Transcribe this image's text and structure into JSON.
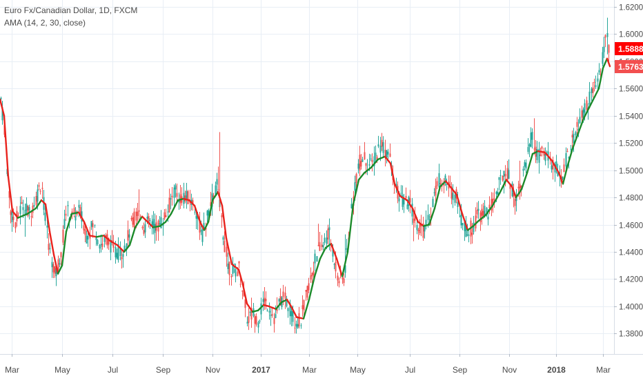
{
  "chart_data": {
    "type": "candlestick",
    "title": "Euro Fx/Canadian Dollar, 1D, FXCM",
    "indicator_label": "AMA (14, 2, 30, close)",
    "ylim": [
      1.365,
      1.625
    ],
    "y_ticks": [
      "1.62000",
      "1.60000",
      "1.58000",
      "1.56000",
      "1.54000",
      "1.52000",
      "1.50000",
      "1.48000",
      "1.46000",
      "1.44000",
      "1.42000",
      "1.40000",
      "1.38000"
    ],
    "x_ticks": [
      "Mar",
      "May",
      "Jul",
      "Sep",
      "Nov",
      "2017",
      "Mar",
      "May",
      "Jul",
      "Sep",
      "Nov",
      "2018",
      "Mar"
    ],
    "x_tick_bold": [
      false,
      false,
      false,
      false,
      false,
      true,
      false,
      false,
      false,
      false,
      false,
      true,
      false
    ],
    "price_label": "1.58880",
    "ama_label": "1.57634",
    "grid": true,
    "colors": {
      "up": "#26a69a",
      "down": "#ef5350",
      "ama_up": "#1b8a2a",
      "ama_down": "#e8221c",
      "grid": "#e8eef5",
      "price_tag": "#ff0000",
      "ama_tag": "#f24f4f",
      "axis_text": "#4a4a4a"
    },
    "price_path": [
      [
        0,
        1.557
      ],
      [
        8,
        1.52
      ],
      [
        14,
        1.47
      ],
      [
        22,
        1.462
      ],
      [
        32,
        1.475
      ],
      [
        42,
        1.468
      ],
      [
        52,
        1.48
      ],
      [
        60,
        1.492
      ],
      [
        66,
        1.46
      ],
      [
        72,
        1.44
      ],
      [
        80,
        1.422
      ],
      [
        88,
        1.44
      ],
      [
        95,
        1.47
      ],
      [
        105,
        1.466
      ],
      [
        115,
        1.47
      ],
      [
        125,
        1.452
      ],
      [
        135,
        1.46
      ],
      [
        145,
        1.445
      ],
      [
        155,
        1.45
      ],
      [
        165,
        1.44
      ],
      [
        175,
        1.44
      ],
      [
        182,
        1.445
      ],
      [
        190,
        1.46
      ],
      [
        200,
        1.47
      ],
      [
        208,
        1.458
      ],
      [
        216,
        1.462
      ],
      [
        226,
        1.458
      ],
      [
        234,
        1.462
      ],
      [
        242,
        1.47
      ],
      [
        252,
        1.485
      ],
      [
        260,
        1.48
      ],
      [
        268,
        1.48
      ],
      [
        276,
        1.478
      ],
      [
        284,
        1.47
      ],
      [
        292,
        1.45
      ],
      [
        300,
        1.465
      ],
      [
        308,
        1.48
      ],
      [
        314,
        1.49
      ],
      [
        318,
        1.475
      ],
      [
        324,
        1.45
      ],
      [
        330,
        1.43
      ],
      [
        338,
        1.425
      ],
      [
        346,
        1.428
      ],
      [
        352,
        1.41
      ],
      [
        358,
        1.39
      ],
      [
        366,
        1.395
      ],
      [
        374,
        1.39
      ],
      [
        382,
        1.405
      ],
      [
        390,
        1.4
      ],
      [
        398,
        1.39
      ],
      [
        406,
        1.405
      ],
      [
        414,
        1.405
      ],
      [
        420,
        1.398
      ],
      [
        428,
        1.388
      ],
      [
        436,
        1.39
      ],
      [
        444,
        1.41
      ],
      [
        452,
        1.425
      ],
      [
        460,
        1.44
      ],
      [
        468,
        1.445
      ],
      [
        476,
        1.455
      ],
      [
        484,
        1.435
      ],
      [
        490,
        1.42
      ],
      [
        498,
        1.42
      ],
      [
        506,
        1.455
      ],
      [
        514,
        1.49
      ],
      [
        520,
        1.505
      ],
      [
        528,
        1.51
      ],
      [
        536,
        1.502
      ],
      [
        544,
        1.51
      ],
      [
        552,
        1.52
      ],
      [
        558,
        1.515
      ],
      [
        564,
        1.51
      ],
      [
        570,
        1.49
      ],
      [
        578,
        1.48
      ],
      [
        586,
        1.476
      ],
      [
        594,
        1.475
      ],
      [
        600,
        1.465
      ],
      [
        606,
        1.46
      ],
      [
        614,
        1.455
      ],
      [
        622,
        1.465
      ],
      [
        630,
        1.485
      ],
      [
        638,
        1.495
      ],
      [
        646,
        1.49
      ],
      [
        654,
        1.485
      ],
      [
        662,
        1.48
      ],
      [
        668,
        1.465
      ],
      [
        676,
        1.455
      ],
      [
        684,
        1.458
      ],
      [
        692,
        1.466
      ],
      [
        700,
        1.47
      ],
      [
        708,
        1.468
      ],
      [
        716,
        1.48
      ],
      [
        724,
        1.49
      ],
      [
        732,
        1.502
      ],
      [
        740,
        1.49
      ],
      [
        746,
        1.478
      ],
      [
        754,
        1.49
      ],
      [
        762,
        1.505
      ],
      [
        770,
        1.525
      ],
      [
        778,
        1.51
      ],
      [
        786,
        1.512
      ],
      [
        794,
        1.51
      ],
      [
        800,
        1.505
      ],
      [
        808,
        1.5
      ],
      [
        814,
        1.49
      ],
      [
        820,
        1.508
      ],
      [
        828,
        1.52
      ],
      [
        836,
        1.53
      ],
      [
        844,
        1.54
      ],
      [
        852,
        1.55
      ],
      [
        860,
        1.558
      ],
      [
        866,
        1.565
      ],
      [
        872,
        1.58
      ],
      [
        878,
        1.6
      ],
      [
        882,
        1.5888
      ]
    ],
    "ama_path": [
      [
        0,
        1.552
      ],
      [
        6,
        1.54
      ],
      [
        12,
        1.495
      ],
      [
        18,
        1.47
      ],
      [
        26,
        1.465
      ],
      [
        40,
        1.468
      ],
      [
        52,
        1.472
      ],
      [
        60,
        1.478
      ],
      [
        66,
        1.475
      ],
      [
        72,
        1.455
      ],
      [
        78,
        1.438
      ],
      [
        84,
        1.424
      ],
      [
        90,
        1.43
      ],
      [
        96,
        1.455
      ],
      [
        104,
        1.468
      ],
      [
        114,
        1.469
      ],
      [
        122,
        1.462
      ],
      [
        130,
        1.452
      ],
      [
        140,
        1.451
      ],
      [
        150,
        1.452
      ],
      [
        160,
        1.448
      ],
      [
        170,
        1.445
      ],
      [
        180,
        1.44
      ],
      [
        188,
        1.445
      ],
      [
        196,
        1.458
      ],
      [
        206,
        1.466
      ],
      [
        214,
        1.462
      ],
      [
        222,
        1.458
      ],
      [
        232,
        1.459
      ],
      [
        240,
        1.462
      ],
      [
        248,
        1.468
      ],
      [
        258,
        1.478
      ],
      [
        266,
        1.479
      ],
      [
        274,
        1.478
      ],
      [
        282,
        1.474
      ],
      [
        290,
        1.462
      ],
      [
        296,
        1.456
      ],
      [
        302,
        1.462
      ],
      [
        308,
        1.478
      ],
      [
        316,
        1.484
      ],
      [
        322,
        1.474
      ],
      [
        328,
        1.45
      ],
      [
        336,
        1.431
      ],
      [
        346,
        1.427
      ],
      [
        352,
        1.416
      ],
      [
        358,
        1.402
      ],
      [
        366,
        1.396
      ],
      [
        374,
        1.397
      ],
      [
        382,
        1.401
      ],
      [
        390,
        1.4
      ],
      [
        400,
        1.398
      ],
      [
        408,
        1.403
      ],
      [
        416,
        1.405
      ],
      [
        422,
        1.4
      ],
      [
        430,
        1.392
      ],
      [
        440,
        1.391
      ],
      [
        448,
        1.405
      ],
      [
        456,
        1.422
      ],
      [
        464,
        1.435
      ],
      [
        472,
        1.443
      ],
      [
        480,
        1.446
      ],
      [
        488,
        1.435
      ],
      [
        496,
        1.422
      ],
      [
        504,
        1.44
      ],
      [
        512,
        1.475
      ],
      [
        520,
        1.493
      ],
      [
        528,
        1.498
      ],
      [
        538,
        1.502
      ],
      [
        548,
        1.508
      ],
      [
        558,
        1.51
      ],
      [
        566,
        1.505
      ],
      [
        572,
        1.49
      ],
      [
        580,
        1.481
      ],
      [
        590,
        1.478
      ],
      [
        598,
        1.472
      ],
      [
        606,
        1.462
      ],
      [
        614,
        1.459
      ],
      [
        622,
        1.46
      ],
      [
        630,
        1.472
      ],
      [
        638,
        1.488
      ],
      [
        646,
        1.492
      ],
      [
        654,
        1.487
      ],
      [
        662,
        1.482
      ],
      [
        670,
        1.468
      ],
      [
        678,
        1.456
      ],
      [
        686,
        1.459
      ],
      [
        694,
        1.463
      ],
      [
        704,
        1.467
      ],
      [
        714,
        1.474
      ],
      [
        724,
        1.483
      ],
      [
        734,
        1.493
      ],
      [
        742,
        1.488
      ],
      [
        748,
        1.48
      ],
      [
        756,
        1.486
      ],
      [
        764,
        1.498
      ],
      [
        772,
        1.512
      ],
      [
        780,
        1.514
      ],
      [
        790,
        1.513
      ],
      [
        800,
        1.507
      ],
      [
        810,
        1.498
      ],
      [
        816,
        1.49
      ],
      [
        822,
        1.502
      ],
      [
        830,
        1.516
      ],
      [
        838,
        1.527
      ],
      [
        846,
        1.538
      ],
      [
        854,
        1.546
      ],
      [
        862,
        1.554
      ],
      [
        868,
        1.56
      ],
      [
        874,
        1.575
      ],
      [
        880,
        1.582
      ],
      [
        884,
        1.5763
      ]
    ]
  }
}
